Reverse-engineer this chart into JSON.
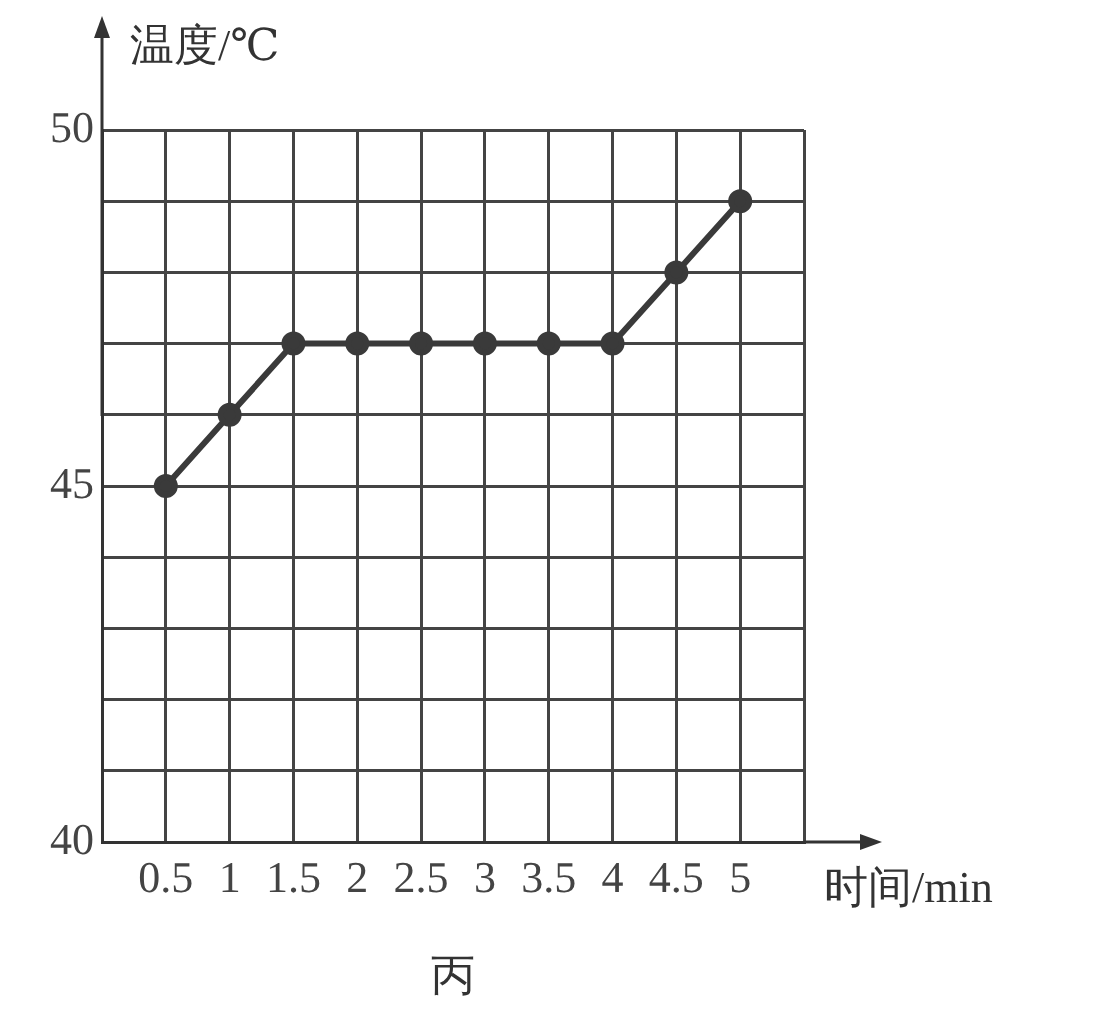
{
  "chart_data": {
    "type": "line",
    "xlabel": "时间/min",
    "ylabel": "温度/℃",
    "annotations": [
      "丙"
    ],
    "x": [
      0.5,
      1,
      1.5,
      2,
      2.5,
      3,
      3.5,
      4,
      4.5,
      5
    ],
    "series": [
      {
        "color": "#3a3a3a",
        "values": [
          45,
          46,
          47,
          47,
          47,
          47,
          47,
          47,
          48,
          49
        ]
      }
    ],
    "xlim": [
      0,
      5.5
    ],
    "xticks": [
      {
        "value": 0,
        "label": null
      },
      0.5,
      1,
      1.5,
      2,
      2.5,
      3,
      3.5,
      4,
      4.5,
      5,
      {
        "value": 5.5,
        "label": null
      }
    ],
    "ylim": [
      40,
      50
    ],
    "yticks": [
      40,
      {
        "value": 41,
        "label": null
      },
      {
        "value": 42,
        "label": null
      },
      {
        "value": 43,
        "label": null
      },
      {
        "value": 44,
        "label": null
      },
      45,
      {
        "value": 46,
        "label": null
      },
      {
        "value": 47,
        "label": null
      },
      {
        "value": 48,
        "label": null
      },
      {
        "value": 49,
        "label": null
      },
      50
    ],
    "grid": true,
    "marker": "circle",
    "line_style": "solid"
  }
}
